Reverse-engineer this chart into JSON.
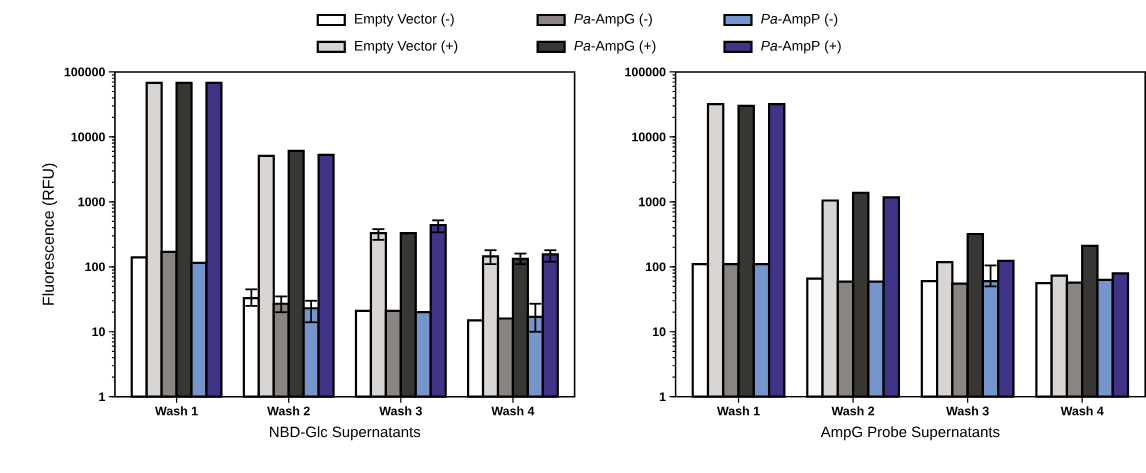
{
  "chart_data": [
    {
      "type": "bar",
      "xlabel": "NBD-Glc Supernatants",
      "ylabel": "Fluorescence  (RFU)",
      "log": "y",
      "legend": "top",
      "categories": [
        "Wash 1",
        "Wash 2",
        "Wash 3",
        "Wash 4"
      ],
      "ylim": [
        1,
        100000
      ],
      "yticks": [
        1,
        10,
        100,
        1000,
        10000,
        100000
      ],
      "series": [
        {
          "name": "Empty Vector (-)",
          "color": "#ffffff",
          "values": [
            140,
            33,
            21,
            15
          ],
          "errors": [
            null,
            [
              25,
              45
            ],
            null,
            null
          ]
        },
        {
          "name": "Empty Vector (+)",
          "color": "#d9d5d3",
          "values": [
            68000,
            5100,
            330,
            145
          ],
          "errors": [
            null,
            null,
            [
              260,
              380
            ],
            [
              110,
              180
            ]
          ]
        },
        {
          "name": "*Pa*-AmpG (-)",
          "color": "#8a8583",
          "values": [
            170,
            27,
            21,
            16
          ],
          "errors": [
            null,
            [
              20,
              35
            ],
            null,
            null
          ]
        },
        {
          "name": "*Pa*-AmpG (+)",
          "color": "#393734",
          "values": [
            68000,
            6100,
            330,
            133
          ],
          "errors": [
            null,
            null,
            null,
            [
              110,
              160
            ]
          ]
        },
        {
          "name": "*Pa*-AmpP (-)",
          "color": "#7596cc",
          "values": [
            115,
            23,
            20,
            17
          ],
          "errors": [
            null,
            [
              14,
              30
            ],
            null,
            [
              10,
              27
            ]
          ]
        },
        {
          "name": "*Pa*-AmpP (+)",
          "color": "#3f3488",
          "values": [
            68000,
            5300,
            440,
            155
          ],
          "errors": [
            null,
            null,
            [
              340,
              520
            ],
            [
              120,
              180
            ]
          ]
        }
      ]
    },
    {
      "type": "bar",
      "xlabel": "AmpG  Probe Supernatants",
      "log": "y",
      "categories": [
        "Wash 1",
        "Wash 2",
        "Wash 3",
        "Wash 4"
      ],
      "ylim": [
        1,
        100000
      ],
      "yticks": [
        1,
        10,
        100,
        1000,
        10000,
        100000
      ],
      "series": [
        {
          "color": "#ffffff",
          "values": [
            110,
            66,
            60,
            56
          ]
        },
        {
          "color": "#d9d5d3",
          "values": [
            32000,
            1050,
            118,
            73
          ]
        },
        {
          "color": "#8a8583",
          "values": [
            110,
            59,
            55,
            57
          ]
        },
        {
          "color": "#393734",
          "values": [
            30000,
            1380,
            320,
            210
          ]
        },
        {
          "color": "#7596cc",
          "values": [
            110,
            59,
            60,
            63
          ],
          "errors": [
            null,
            null,
            [
              50,
              105
            ],
            null
          ]
        },
        {
          "color": "#3f3488",
          "values": [
            32000,
            1170,
            123,
            79
          ]
        }
      ]
    }
  ]
}
